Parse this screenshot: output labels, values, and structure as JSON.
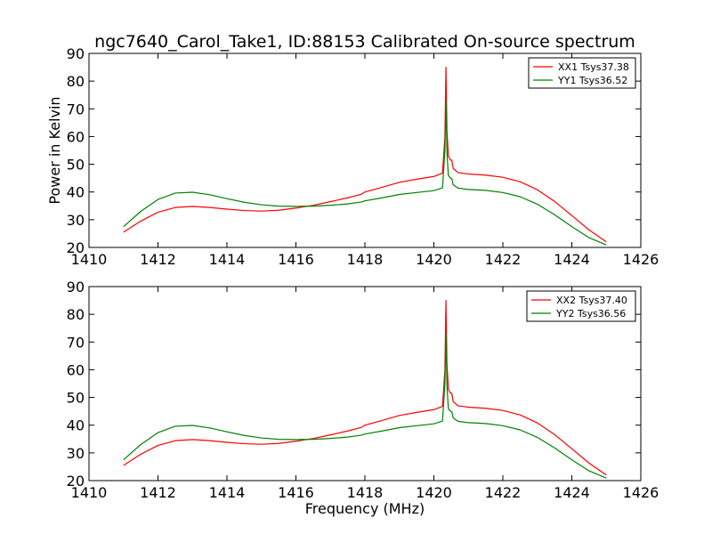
{
  "title": "ngc7640_Carol_Take1, ID:88153 Calibrated On-source spectrum",
  "chart_data": [
    {
      "type": "line",
      "xlabel": "",
      "ylabel": "Power in Kelvin",
      "xlim": [
        1410,
        1426
      ],
      "ylim": [
        20,
        90
      ],
      "xticks": [
        1410,
        1412,
        1414,
        1416,
        1418,
        1420,
        1422,
        1424,
        1426
      ],
      "yticks": [
        20,
        30,
        40,
        50,
        60,
        70,
        80,
        90
      ],
      "legend_position": "top-right",
      "series": [
        {
          "name": "XX1 Tsys37.38",
          "color": "#ff0000",
          "points": [
            [
              1411.0,
              25.5
            ],
            [
              1411.5,
              29.5
            ],
            [
              1412.0,
              32.7
            ],
            [
              1412.5,
              34.4
            ],
            [
              1413.0,
              34.8
            ],
            [
              1413.5,
              34.4
            ],
            [
              1414.0,
              33.8
            ],
            [
              1414.5,
              33.3
            ],
            [
              1415.0,
              33.1
            ],
            [
              1415.5,
              33.4
            ],
            [
              1416.0,
              34.2
            ],
            [
              1416.5,
              35.2
            ],
            [
              1417.0,
              36.5
            ],
            [
              1417.5,
              37.9
            ],
            [
              1417.9,
              39.2
            ],
            [
              1418.0,
              40.0
            ],
            [
              1418.5,
              41.7
            ],
            [
              1419.0,
              43.5
            ],
            [
              1419.5,
              44.6
            ],
            [
              1420.0,
              45.6
            ],
            [
              1420.25,
              46.8
            ],
            [
              1420.32,
              60.0
            ],
            [
              1420.35,
              85.0
            ],
            [
              1420.38,
              62.0
            ],
            [
              1420.42,
              53.0
            ],
            [
              1420.48,
              51.5
            ],
            [
              1420.52,
              51.5
            ],
            [
              1420.56,
              48.5
            ],
            [
              1420.7,
              47.0
            ],
            [
              1421.0,
              46.5
            ],
            [
              1421.5,
              46.1
            ],
            [
              1422.0,
              45.3
            ],
            [
              1422.5,
              43.7
            ],
            [
              1423.0,
              40.8
            ],
            [
              1423.5,
              36.6
            ],
            [
              1424.0,
              31.5
            ],
            [
              1424.5,
              26.3
            ],
            [
              1425.0,
              22.0
            ]
          ]
        },
        {
          "name": "YY1 Tsys36.52",
          "color": "#008000",
          "points": [
            [
              1411.0,
              27.5
            ],
            [
              1411.5,
              33.0
            ],
            [
              1412.0,
              37.3
            ],
            [
              1412.5,
              39.6
            ],
            [
              1413.0,
              39.9
            ],
            [
              1413.5,
              39.0
            ],
            [
              1414.0,
              37.6
            ],
            [
              1414.5,
              36.3
            ],
            [
              1415.0,
              35.4
            ],
            [
              1415.5,
              34.9
            ],
            [
              1416.0,
              34.8
            ],
            [
              1416.5,
              34.9
            ],
            [
              1417.0,
              35.2
            ],
            [
              1417.5,
              35.7
            ],
            [
              1417.9,
              36.4
            ],
            [
              1418.0,
              36.8
            ],
            [
              1418.5,
              37.9
            ],
            [
              1419.0,
              39.1
            ],
            [
              1419.5,
              39.8
            ],
            [
              1420.0,
              40.5
            ],
            [
              1420.25,
              41.5
            ],
            [
              1420.32,
              55.0
            ],
            [
              1420.35,
              73.0
            ],
            [
              1420.38,
              54.0
            ],
            [
              1420.42,
              46.0
            ],
            [
              1420.48,
              45.0
            ],
            [
              1420.52,
              44.8
            ],
            [
              1420.56,
              42.6
            ],
            [
              1420.7,
              41.4
            ],
            [
              1421.0,
              40.9
            ],
            [
              1421.5,
              40.6
            ],
            [
              1422.0,
              39.8
            ],
            [
              1422.5,
              38.3
            ],
            [
              1423.0,
              35.6
            ],
            [
              1423.5,
              31.8
            ],
            [
              1424.0,
              27.5
            ],
            [
              1424.5,
              23.5
            ],
            [
              1425.0,
              20.9
            ]
          ]
        }
      ]
    },
    {
      "type": "line",
      "xlabel": "Frequency (MHz)",
      "ylabel": "",
      "xlim": [
        1410,
        1426
      ],
      "ylim": [
        20,
        90
      ],
      "xticks": [
        1410,
        1412,
        1414,
        1416,
        1418,
        1420,
        1422,
        1424,
        1426
      ],
      "yticks": [
        20,
        30,
        40,
        50,
        60,
        70,
        80,
        90
      ],
      "legend_position": "top-right",
      "series": [
        {
          "name": "XX2 Tsys37.40",
          "color": "#ff0000",
          "points": [
            [
              1411.0,
              25.5
            ],
            [
              1411.5,
              29.5
            ],
            [
              1412.0,
              32.7
            ],
            [
              1412.5,
              34.4
            ],
            [
              1413.0,
              34.8
            ],
            [
              1413.5,
              34.4
            ],
            [
              1414.0,
              33.8
            ],
            [
              1414.5,
              33.3
            ],
            [
              1415.0,
              33.1
            ],
            [
              1415.5,
              33.4
            ],
            [
              1416.0,
              34.2
            ],
            [
              1416.5,
              35.2
            ],
            [
              1417.0,
              36.5
            ],
            [
              1417.5,
              37.9
            ],
            [
              1417.9,
              39.2
            ],
            [
              1418.0,
              40.0
            ],
            [
              1418.5,
              41.7
            ],
            [
              1419.0,
              43.5
            ],
            [
              1419.5,
              44.6
            ],
            [
              1420.0,
              45.6
            ],
            [
              1420.25,
              46.8
            ],
            [
              1420.32,
              60.0
            ],
            [
              1420.35,
              85.0
            ],
            [
              1420.38,
              62.0
            ],
            [
              1420.42,
              53.0
            ],
            [
              1420.48,
              51.5
            ],
            [
              1420.52,
              51.5
            ],
            [
              1420.56,
              48.5
            ],
            [
              1420.7,
              47.0
            ],
            [
              1421.0,
              46.5
            ],
            [
              1421.5,
              46.1
            ],
            [
              1422.0,
              45.3
            ],
            [
              1422.5,
              43.7
            ],
            [
              1423.0,
              40.8
            ],
            [
              1423.5,
              36.6
            ],
            [
              1424.0,
              31.5
            ],
            [
              1424.5,
              26.3
            ],
            [
              1425.0,
              22.0
            ]
          ]
        },
        {
          "name": "YY2 Tsys36.56",
          "color": "#008000",
          "points": [
            [
              1411.0,
              27.5
            ],
            [
              1411.5,
              33.0
            ],
            [
              1412.0,
              37.3
            ],
            [
              1412.5,
              39.6
            ],
            [
              1413.0,
              39.9
            ],
            [
              1413.5,
              39.0
            ],
            [
              1414.0,
              37.6
            ],
            [
              1414.5,
              36.3
            ],
            [
              1415.0,
              35.4
            ],
            [
              1415.5,
              34.9
            ],
            [
              1416.0,
              34.8
            ],
            [
              1416.5,
              34.9
            ],
            [
              1417.0,
              35.2
            ],
            [
              1417.5,
              35.7
            ],
            [
              1417.9,
              36.4
            ],
            [
              1418.0,
              36.8
            ],
            [
              1418.5,
              37.9
            ],
            [
              1419.0,
              39.1
            ],
            [
              1419.5,
              39.8
            ],
            [
              1420.0,
              40.5
            ],
            [
              1420.25,
              41.5
            ],
            [
              1420.32,
              55.0
            ],
            [
              1420.35,
              73.0
            ],
            [
              1420.38,
              54.0
            ],
            [
              1420.42,
              46.0
            ],
            [
              1420.48,
              45.0
            ],
            [
              1420.52,
              44.8
            ],
            [
              1420.56,
              42.6
            ],
            [
              1420.7,
              41.4
            ],
            [
              1421.0,
              40.9
            ],
            [
              1421.5,
              40.6
            ],
            [
              1422.0,
              39.8
            ],
            [
              1422.5,
              38.3
            ],
            [
              1423.0,
              35.6
            ],
            [
              1423.5,
              31.8
            ],
            [
              1424.0,
              27.5
            ],
            [
              1424.5,
              23.5
            ],
            [
              1425.0,
              20.9
            ]
          ]
        }
      ]
    }
  ]
}
